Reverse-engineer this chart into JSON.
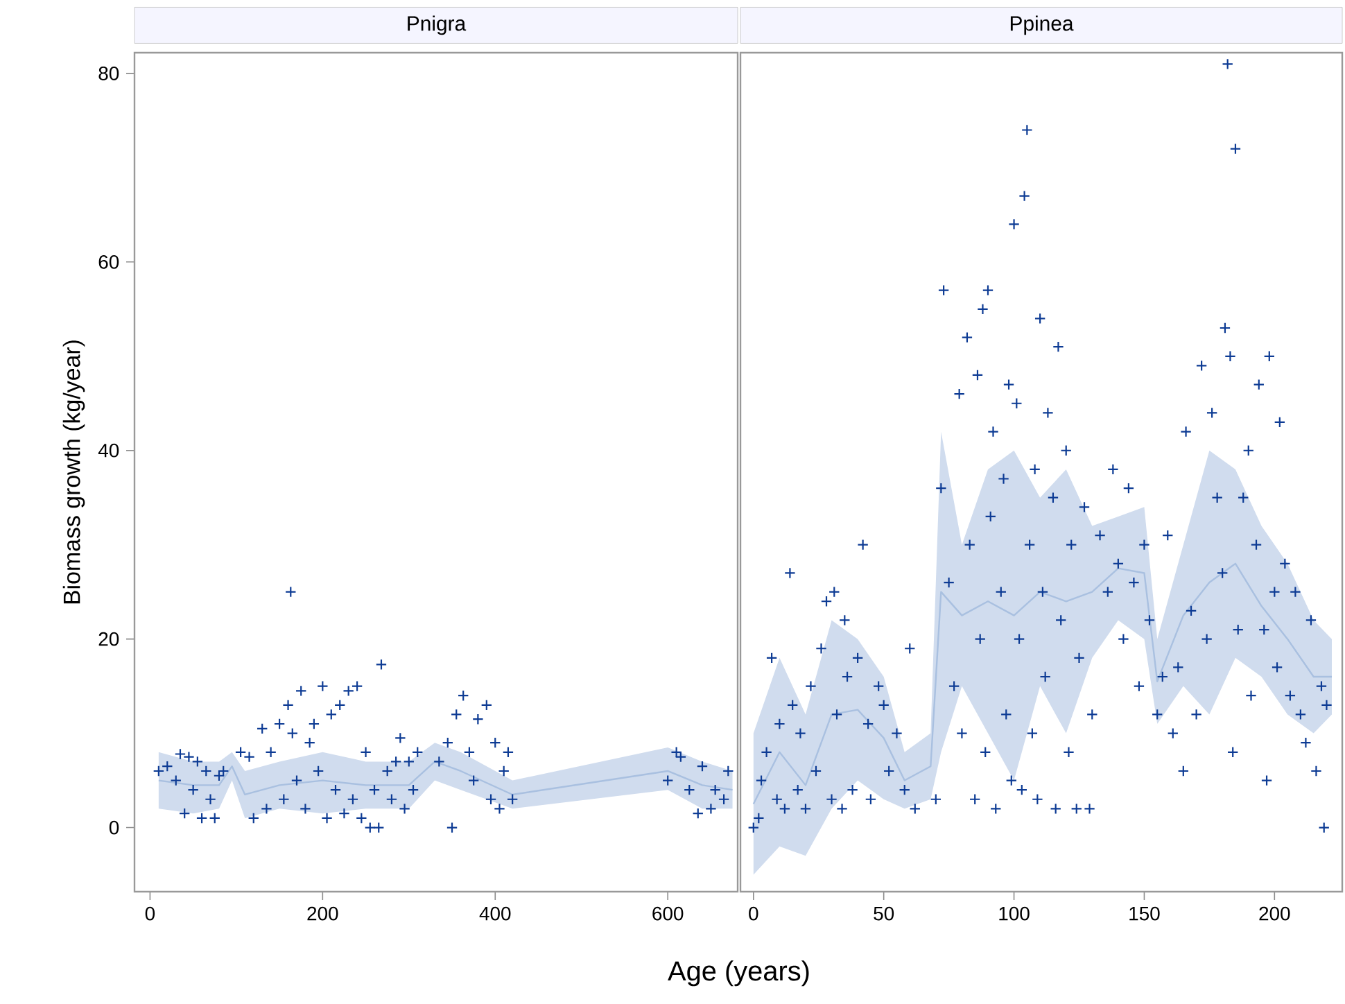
{
  "chart_data": [
    {
      "type": "scatter",
      "title": "Pnigra",
      "xlabel": "Age (years)",
      "ylabel": "Biomass growth (kg/year)",
      "xlim": [
        -18,
        681
      ],
      "ylim": [
        -6.8,
        82.2
      ],
      "xticks": [
        0,
        200,
        400,
        600
      ],
      "yticks": [
        0,
        20,
        40,
        60,
        80
      ],
      "series": [
        {
          "type": "line",
          "color": "#a9c0e0",
          "x": [
            10,
            50,
            80,
            95,
            110,
            150,
            200,
            250,
            300,
            330,
            360,
            420,
            600,
            640,
            675
          ],
          "lower": [
            2,
            1.5,
            2,
            5,
            1,
            2,
            1.5,
            2,
            2,
            5,
            4,
            2,
            4,
            2,
            2
          ],
          "upper": [
            8,
            7,
            7,
            8,
            6,
            7,
            8,
            7,
            7,
            9,
            8,
            5,
            8.5,
            7,
            6
          ],
          "values": [
            5,
            4.5,
            4.5,
            6.5,
            3.5,
            4.5,
            5,
            4.5,
            4.5,
            7,
            6,
            3.5,
            6,
            4.5,
            4
          ]
        },
        {
          "color": "#0d3b94",
          "marker": "cross",
          "x": [
            10,
            20,
            30,
            35,
            40,
            45,
            50,
            55,
            60,
            65,
            70,
            75,
            80,
            85,
            105,
            115,
            120,
            130,
            135,
            140,
            150,
            155,
            160,
            163,
            165,
            170,
            175,
            180,
            185,
            190,
            195,
            200,
            205,
            210,
            215,
            220,
            225,
            230,
            235,
            240,
            245,
            250,
            255,
            260,
            265,
            268,
            275,
            280,
            285,
            290,
            295,
            300,
            305,
            310,
            335,
            345,
            350,
            355,
            363,
            370,
            375,
            380,
            390,
            395,
            400,
            405,
            410,
            415,
            420,
            600,
            610,
            615,
            625,
            635,
            640,
            650,
            655,
            665,
            670
          ],
          "values": [
            6,
            6.5,
            5,
            7.8,
            1.5,
            7.5,
            4,
            7,
            1,
            6,
            3,
            1,
            5.5,
            6,
            8,
            7.5,
            1,
            10.5,
            2,
            8,
            11,
            3,
            13,
            25,
            10,
            5,
            14.5,
            2,
            9,
            11,
            6,
            15,
            1,
            12,
            4,
            13,
            1.5,
            14.5,
            3,
            15,
            1,
            8,
            0,
            4,
            0,
            17.3,
            6,
            3,
            7,
            9.5,
            2,
            7,
            4,
            8,
            7,
            9,
            0,
            12,
            14,
            8,
            5,
            11.5,
            13,
            3,
            9,
            2,
            6,
            8,
            3,
            5,
            8,
            7.5,
            4,
            1.5,
            6.5,
            2,
            4,
            3,
            6
          ]
        }
      ]
    },
    {
      "type": "scatter",
      "title": "Ppinea",
      "xlim": [
        -5,
        226
      ],
      "ylim": [
        -6.8,
        82.2
      ],
      "xticks": [
        0,
        50,
        100,
        150,
        200
      ],
      "tick_labels": "x",
      "series": [
        {
          "type": "line",
          "color": "#a9c0e0",
          "x": [
            0,
            10,
            20,
            30,
            40,
            50,
            58,
            68,
            72,
            80,
            90,
            100,
            110,
            120,
            130,
            140,
            150,
            155,
            165,
            175,
            185,
            195,
            205,
            215,
            222
          ],
          "lower": [
            -5,
            -2,
            -3,
            2,
            5,
            3,
            2,
            3,
            8,
            15,
            10,
            5,
            15,
            10,
            18,
            22,
            20,
            11,
            15,
            12,
            18,
            16,
            12,
            10,
            12
          ],
          "upper": [
            10,
            18,
            12,
            22,
            20,
            16,
            8,
            10,
            42,
            30,
            38,
            40,
            35,
            38,
            32,
            33,
            34,
            20,
            30,
            40,
            38,
            32,
            28,
            22,
            20
          ],
          "values": [
            2.5,
            8,
            4.5,
            12,
            12.5,
            9.5,
            5,
            6.5,
            25,
            22.5,
            24,
            22.5,
            25,
            24,
            25,
            27.5,
            27,
            15.5,
            22.5,
            26,
            28,
            23.5,
            20,
            16,
            16
          ]
        },
        {
          "color": "#0d3b94",
          "marker": "cross",
          "x": [
            0,
            2,
            3,
            5,
            7,
            9,
            10,
            12,
            14,
            15,
            17,
            18,
            20,
            22,
            24,
            26,
            28,
            30,
            31,
            32,
            34,
            35,
            36,
            38,
            40,
            42,
            44,
            45,
            48,
            50,
            52,
            55,
            58,
            60,
            62,
            70,
            72,
            73,
            75,
            77,
            79,
            80,
            82,
            83,
            85,
            86,
            87,
            88,
            89,
            90,
            91,
            92,
            93,
            95,
            96,
            97,
            98,
            99,
            100,
            101,
            102,
            103,
            104,
            105,
            106,
            107,
            108,
            109,
            110,
            111,
            112,
            113,
            115,
            116,
            117,
            118,
            120,
            121,
            122,
            124,
            125,
            127,
            129,
            130,
            133,
            136,
            138,
            140,
            142,
            144,
            146,
            148,
            150,
            152,
            155,
            157,
            159,
            161,
            163,
            165,
            166,
            168,
            170,
            172,
            174,
            176,
            178,
            180,
            181,
            182,
            183,
            184,
            185,
            186,
            188,
            190,
            191,
            193,
            194,
            196,
            197,
            198,
            200,
            201,
            202,
            204,
            206,
            208,
            210,
            212,
            214,
            216,
            218,
            219,
            220
          ],
          "values": [
            0,
            1,
            5,
            8,
            18,
            3,
            11,
            2,
            27,
            13,
            4,
            10,
            2,
            15,
            6,
            19,
            24,
            3,
            25,
            12,
            2,
            22,
            16,
            4,
            18,
            30,
            11,
            3,
            15,
            13,
            6,
            10,
            4,
            19,
            2,
            3,
            36,
            57,
            26,
            15,
            46,
            10,
            52,
            30,
            3,
            48,
            20,
            55,
            8,
            57,
            33,
            42,
            2,
            25,
            37,
            12,
            47,
            5,
            64,
            45,
            20,
            4,
            67,
            74,
            30,
            10,
            38,
            3,
            54,
            25,
            16,
            44,
            35,
            2,
            51,
            22,
            40,
            8,
            30,
            2,
            18,
            34,
            2,
            12,
            31,
            25,
            38,
            28,
            20,
            36,
            26,
            15,
            30,
            22,
            12,
            16,
            31,
            10,
            17,
            6,
            42,
            23,
            12,
            49,
            20,
            44,
            35,
            27,
            53,
            81,
            50,
            8,
            72,
            21,
            35,
            40,
            14,
            30,
            47,
            21,
            5,
            50,
            25,
            17,
            43,
            28,
            14,
            25,
            12,
            9,
            22,
            6,
            15,
            0,
            13
          ]
        }
      ]
    }
  ]
}
